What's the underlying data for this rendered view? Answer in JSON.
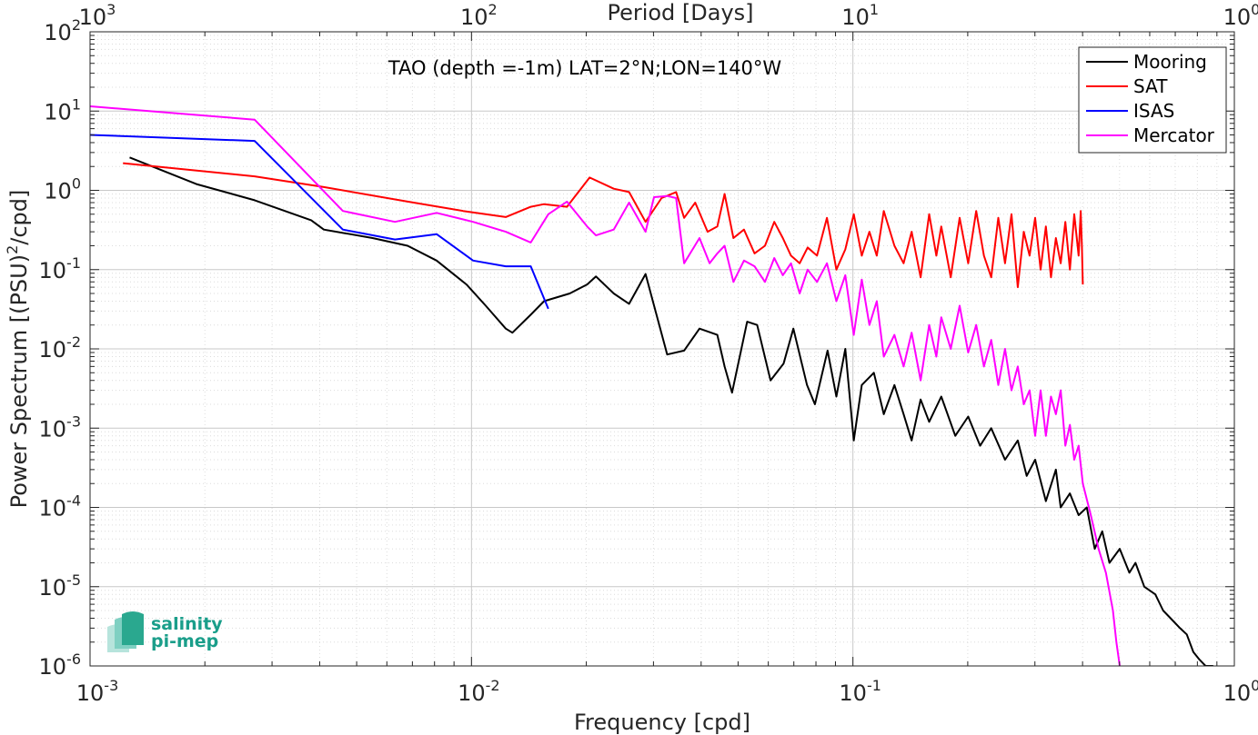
{
  "chart_data": {
    "type": "line",
    "title": "TAO (depth =-1m) LAT=2°N;LON=140°W",
    "xlabel": "Frequency [cpd]",
    "ylabel": "Power Spectrum [(PSU)²/cpd]",
    "ylabel_parts": {
      "main": "Power Spectrum [(PSU)",
      "sup": "2",
      "tail": "/cpd]"
    },
    "top_xlabel": "Period [Days]",
    "xscale": "log",
    "yscale": "log",
    "xlim": [
      0.001,
      1
    ],
    "ylim": [
      1e-06,
      100
    ],
    "grid": true,
    "legend_position": "top-right",
    "x_ticks": [
      {
        "value": 0.001,
        "base": "10",
        "exp": "-3"
      },
      {
        "value": 0.01,
        "base": "10",
        "exp": "-2"
      },
      {
        "value": 0.1,
        "base": "10",
        "exp": "-1"
      },
      {
        "value": 1,
        "base": "10",
        "exp": "0"
      }
    ],
    "top_ticks": [
      {
        "value": 0.001,
        "base": "10",
        "exp": "3"
      },
      {
        "value": 0.01,
        "base": "10",
        "exp": "2"
      },
      {
        "value": 0.1,
        "base": "10",
        "exp": "1"
      },
      {
        "value": 1,
        "base": "10",
        "exp": "0"
      }
    ],
    "y_ticks": [
      {
        "value": 100,
        "base": "10",
        "exp": "2"
      },
      {
        "value": 10,
        "base": "10",
        "exp": "1"
      },
      {
        "value": 1,
        "base": "10",
        "exp": "0"
      },
      {
        "value": 0.1,
        "base": "10",
        "exp": "-1"
      },
      {
        "value": 0.01,
        "base": "10",
        "exp": "-2"
      },
      {
        "value": 0.001,
        "base": "10",
        "exp": "-3"
      },
      {
        "value": 0.0001,
        "base": "10",
        "exp": "-4"
      },
      {
        "value": 1e-05,
        "base": "10",
        "exp": "-5"
      },
      {
        "value": 1e-06,
        "base": "10",
        "exp": "-6"
      }
    ],
    "series": [
      {
        "name": "Mooring",
        "color": "#000000",
        "points": [
          [
            0.00127,
            2.6
          ],
          [
            0.0019,
            1.2
          ],
          [
            0.0027,
            0.75
          ],
          [
            0.0038,
            0.42
          ],
          [
            0.0041,
            0.32
          ],
          [
            0.0055,
            0.25
          ],
          [
            0.0068,
            0.2
          ],
          [
            0.0081,
            0.13
          ],
          [
            0.0097,
            0.065
          ],
          [
            0.0109,
            0.035
          ],
          [
            0.0123,
            0.018
          ],
          [
            0.0128,
            0.016
          ],
          [
            0.0143,
            0.027
          ],
          [
            0.0155,
            0.04
          ],
          [
            0.0181,
            0.05
          ],
          [
            0.0201,
            0.065
          ],
          [
            0.0212,
            0.082
          ],
          [
            0.0236,
            0.05
          ],
          [
            0.0259,
            0.037
          ],
          [
            0.0286,
            0.088
          ],
          [
            0.0326,
            0.0085
          ],
          [
            0.0361,
            0.0095
          ],
          [
            0.0396,
            0.018
          ],
          [
            0.0441,
            0.015
          ],
          [
            0.0461,
            0.006
          ],
          [
            0.0482,
            0.0028
          ],
          [
            0.0528,
            0.022
          ],
          [
            0.0561,
            0.02
          ],
          [
            0.0608,
            0.004
          ],
          [
            0.0658,
            0.0065
          ],
          [
            0.0698,
            0.018
          ],
          [
            0.0758,
            0.0035
          ],
          [
            0.0795,
            0.002
          ],
          [
            0.0858,
            0.0095
          ],
          [
            0.0905,
            0.0025
          ],
          [
            0.0955,
            0.01
          ],
          [
            0.1005,
            0.0007
          ],
          [
            0.1055,
            0.0035
          ],
          [
            0.1135,
            0.005
          ],
          [
            0.1205,
            0.0015
          ],
          [
            0.1285,
            0.0035
          ],
          [
            0.1358,
            0.0015
          ],
          [
            0.1425,
            0.0007
          ],
          [
            0.1505,
            0.0023
          ],
          [
            0.1585,
            0.0012
          ],
          [
            0.1705,
            0.0025
          ],
          [
            0.1855,
            0.0008
          ],
          [
            0.2005,
            0.0014
          ],
          [
            0.2155,
            0.0006
          ],
          [
            0.2305,
            0.001
          ],
          [
            0.2505,
            0.0004
          ],
          [
            0.2705,
            0.0007
          ],
          [
            0.2855,
            0.00025
          ],
          [
            0.3005,
            0.0004
          ],
          [
            0.3205,
            0.00012
          ],
          [
            0.3405,
            0.0003
          ],
          [
            0.3505,
            0.0001
          ],
          [
            0.3705,
            0.00015
          ],
          [
            0.3905,
            8e-05
          ],
          [
            0.4105,
            0.0001
          ],
          [
            0.4305,
            3e-05
          ],
          [
            0.4505,
            5e-05
          ],
          [
            0.4705,
            2e-05
          ],
          [
            0.5005,
            3e-05
          ],
          [
            0.5305,
            1.5e-05
          ],
          [
            0.5505,
            2e-05
          ],
          [
            0.5805,
            1e-05
          ],
          [
            0.6205,
            8e-06
          ],
          [
            0.6505,
            5e-06
          ],
          [
            0.6805,
            4e-06
          ],
          [
            0.7205,
            3e-06
          ],
          [
            0.7505,
            2.5e-06
          ],
          [
            0.7805,
            1.5e-06
          ],
          [
            0.8105,
            1.2e-06
          ],
          [
            0.8405,
            1e-06
          ],
          [
            0.8805,
            1e-06
          ]
        ]
      },
      {
        "name": "SAT",
        "color": "#ff0000",
        "points": [
          [
            0.00122,
            2.2
          ],
          [
            0.0027,
            1.5
          ],
          [
            0.0041,
            1.1
          ],
          [
            0.0068,
            0.72
          ],
          [
            0.0095,
            0.55
          ],
          [
            0.0123,
            0.46
          ],
          [
            0.0143,
            0.62
          ],
          [
            0.0155,
            0.67
          ],
          [
            0.0178,
            0.62
          ],
          [
            0.0204,
            1.45
          ],
          [
            0.0236,
            1.05
          ],
          [
            0.0259,
            0.95
          ],
          [
            0.0286,
            0.4
          ],
          [
            0.0315,
            0.8
          ],
          [
            0.0344,
            0.95
          ],
          [
            0.0361,
            0.45
          ],
          [
            0.0386,
            0.7
          ],
          [
            0.0416,
            0.3
          ],
          [
            0.0441,
            0.35
          ],
          [
            0.0461,
            0.9
          ],
          [
            0.0486,
            0.25
          ],
          [
            0.0518,
            0.32
          ],
          [
            0.0552,
            0.16
          ],
          [
            0.0588,
            0.2
          ],
          [
            0.0622,
            0.4
          ],
          [
            0.0655,
            0.25
          ],
          [
            0.0688,
            0.15
          ],
          [
            0.0725,
            0.12
          ],
          [
            0.0761,
            0.19
          ],
          [
            0.0805,
            0.15
          ],
          [
            0.0855,
            0.45
          ],
          [
            0.0905,
            0.1
          ],
          [
            0.0955,
            0.18
          ],
          [
            0.1005,
            0.5
          ],
          [
            0.1055,
            0.15
          ],
          [
            0.1105,
            0.3
          ],
          [
            0.1155,
            0.15
          ],
          [
            0.1205,
            0.55
          ],
          [
            0.1285,
            0.2
          ],
          [
            0.1358,
            0.12
          ],
          [
            0.1425,
            0.3
          ],
          [
            0.1505,
            0.08
          ],
          [
            0.1585,
            0.5
          ],
          [
            0.1655,
            0.15
          ],
          [
            0.1705,
            0.35
          ],
          [
            0.1805,
            0.08
          ],
          [
            0.1905,
            0.45
          ],
          [
            0.2005,
            0.12
          ],
          [
            0.2105,
            0.55
          ],
          [
            0.2205,
            0.15
          ],
          [
            0.2305,
            0.08
          ],
          [
            0.2405,
            0.45
          ],
          [
            0.2505,
            0.12
          ],
          [
            0.2605,
            0.5
          ],
          [
            0.2705,
            0.06
          ],
          [
            0.2805,
            0.3
          ],
          [
            0.2905,
            0.15
          ],
          [
            0.3005,
            0.45
          ],
          [
            0.3105,
            0.1
          ],
          [
            0.3205,
            0.35
          ],
          [
            0.3305,
            0.08
          ],
          [
            0.3405,
            0.25
          ],
          [
            0.3505,
            0.12
          ],
          [
            0.3605,
            0.4
          ],
          [
            0.3705,
            0.1
          ],
          [
            0.3805,
            0.5
          ],
          [
            0.3905,
            0.15
          ],
          [
            0.3955,
            0.55
          ],
          [
            0.3985,
            0.2
          ],
          [
            0.4005,
            0.065
          ]
        ]
      },
      {
        "name": "ISAS",
        "color": "#0000ff",
        "points": [
          [
            0.001,
            5.0
          ],
          [
            0.0027,
            4.2
          ],
          [
            0.0046,
            0.32
          ],
          [
            0.0063,
            0.24
          ],
          [
            0.0081,
            0.28
          ],
          [
            0.0101,
            0.13
          ],
          [
            0.0123,
            0.11
          ],
          [
            0.0143,
            0.11
          ],
          [
            0.0159,
            0.032
          ]
        ]
      },
      {
        "name": "Mercator",
        "color": "#ff00ff",
        "points": [
          [
            0.001,
            11.5
          ],
          [
            0.0027,
            7.8
          ],
          [
            0.0046,
            0.55
          ],
          [
            0.0063,
            0.4
          ],
          [
            0.0081,
            0.52
          ],
          [
            0.0101,
            0.4
          ],
          [
            0.0123,
            0.3
          ],
          [
            0.0143,
            0.22
          ],
          [
            0.0159,
            0.5
          ],
          [
            0.0178,
            0.72
          ],
          [
            0.0201,
            0.35
          ],
          [
            0.0212,
            0.27
          ],
          [
            0.0236,
            0.32
          ],
          [
            0.0259,
            0.7
          ],
          [
            0.0286,
            0.3
          ],
          [
            0.0301,
            0.82
          ],
          [
            0.0326,
            0.85
          ],
          [
            0.0344,
            0.8
          ],
          [
            0.0361,
            0.12
          ],
          [
            0.0396,
            0.25
          ],
          [
            0.0421,
            0.12
          ],
          [
            0.0441,
            0.16
          ],
          [
            0.0461,
            0.2
          ],
          [
            0.0486,
            0.07
          ],
          [
            0.0518,
            0.13
          ],
          [
            0.0552,
            0.11
          ],
          [
            0.0588,
            0.07
          ],
          [
            0.0622,
            0.14
          ],
          [
            0.0655,
            0.085
          ],
          [
            0.0688,
            0.12
          ],
          [
            0.0725,
            0.05
          ],
          [
            0.0761,
            0.1
          ],
          [
            0.0805,
            0.07
          ],
          [
            0.0855,
            0.12
          ],
          [
            0.0905,
            0.04
          ],
          [
            0.0955,
            0.085
          ],
          [
            0.1005,
            0.015
          ],
          [
            0.1055,
            0.075
          ],
          [
            0.1105,
            0.02
          ],
          [
            0.1155,
            0.04
          ],
          [
            0.1205,
            0.008
          ],
          [
            0.1285,
            0.015
          ],
          [
            0.1358,
            0.006
          ],
          [
            0.1425,
            0.016
          ],
          [
            0.1505,
            0.004
          ],
          [
            0.1585,
            0.02
          ],
          [
            0.1655,
            0.008
          ],
          [
            0.1705,
            0.025
          ],
          [
            0.1805,
            0.01
          ],
          [
            0.1905,
            0.035
          ],
          [
            0.2005,
            0.009
          ],
          [
            0.2105,
            0.02
          ],
          [
            0.2205,
            0.006
          ],
          [
            0.2305,
            0.013
          ],
          [
            0.2405,
            0.0035
          ],
          [
            0.2505,
            0.01
          ],
          [
            0.2605,
            0.003
          ],
          [
            0.2705,
            0.006
          ],
          [
            0.2805,
            0.002
          ],
          [
            0.2905,
            0.003
          ],
          [
            0.3005,
            0.0008
          ],
          [
            0.3105,
            0.003
          ],
          [
            0.3205,
            0.0008
          ],
          [
            0.3305,
            0.0025
          ],
          [
            0.3405,
            0.0015
          ],
          [
            0.3505,
            0.003
          ],
          [
            0.3605,
            0.0006
          ],
          [
            0.3705,
            0.0011
          ],
          [
            0.3805,
            0.0004
          ],
          [
            0.3905,
            0.0006
          ],
          [
            0.4005,
            0.0002
          ],
          [
            0.4205,
            8e-05
          ],
          [
            0.4405,
            3e-05
          ],
          [
            0.4605,
            1.5e-05
          ],
          [
            0.4805,
            5e-06
          ],
          [
            0.4905,
            2e-06
          ],
          [
            0.5005,
            1e-06
          ]
        ]
      }
    ]
  },
  "logo": {
    "line1": "salinity",
    "line2": "pi-mep",
    "color": "#1a9e8a"
  }
}
